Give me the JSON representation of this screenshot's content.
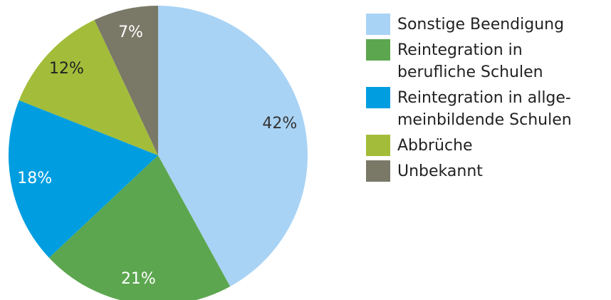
{
  "chart_data": {
    "type": "pie",
    "categories": [
      "Sonstige Beendigung",
      "Reintegration in\nberufliche Schulen",
      "Reintegration in allge-\nmeinbildende Schulen",
      "Abbrüche",
      "Unbekannt"
    ],
    "values": [
      42,
      21,
      18,
      12,
      7
    ],
    "value_labels": [
      "42%",
      "21%",
      "18%",
      "12%",
      "7%"
    ],
    "colors": [
      "#a9d3f5",
      "#5ca64f",
      "#009ee0",
      "#a3bd3a",
      "#7a7867"
    ]
  }
}
